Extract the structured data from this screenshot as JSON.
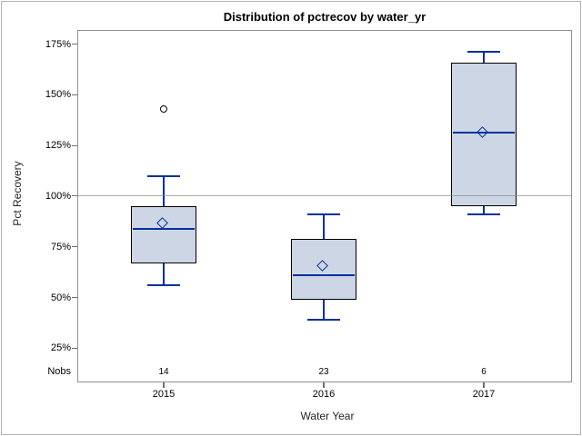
{
  "chart_data": {
    "type": "boxplot",
    "title": "Distribution of pctrecov by water_yr",
    "xlabel": "Water Year",
    "ylabel": "Pct Recovery",
    "nobs_label": "Nobs",
    "grid": false,
    "legend": false,
    "ylim": [
      25,
      175
    ],
    "yticks": [
      {
        "value": 175,
        "label": "175%"
      },
      {
        "value": 150,
        "label": "150%"
      },
      {
        "value": 125,
        "label": "125%"
      },
      {
        "value": 100,
        "label": "100%"
      },
      {
        "value": 75,
        "label": "75%"
      },
      {
        "value": 50,
        "label": "50%"
      },
      {
        "value": 25,
        "label": "25%"
      }
    ],
    "reference_line": 100,
    "categories": [
      "2015",
      "2016",
      "2017"
    ],
    "nobs": [
      "14",
      "23",
      "6"
    ],
    "series": [
      {
        "category": "2015",
        "n": 14,
        "whisker_low": 56,
        "q1": 67,
        "median": 84,
        "mean": 86,
        "q3": 95,
        "whisker_high": 110,
        "outliers": [
          143
        ]
      },
      {
        "category": "2016",
        "n": 23,
        "whisker_low": 39,
        "q1": 49,
        "median": 61,
        "mean": 65,
        "q3": 79,
        "whisker_high": 91,
        "outliers": []
      },
      {
        "category": "2017",
        "n": 6,
        "whisker_low": 91,
        "q1": 95,
        "median": 131.5,
        "mean": 131,
        "q3": 166,
        "whisker_high": 171,
        "outliers": []
      }
    ],
    "colors": {
      "box_fill": "#ccd6e4",
      "box_border": "#000000",
      "whisker": "#00309c",
      "median": "#00309c",
      "mean_marker": "#00309c",
      "outlier": "#000000",
      "reference_line": "#a8a8a8",
      "frame": "#919191",
      "tick": "#6e6e6e"
    }
  }
}
